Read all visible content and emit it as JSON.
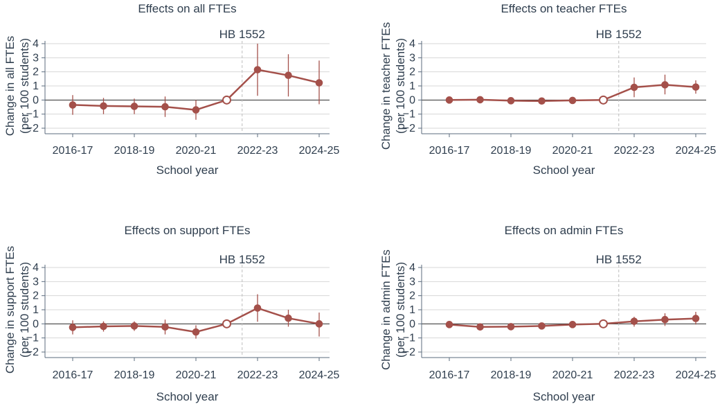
{
  "colors": {
    "series": "#a4504a",
    "grid": "#d7d7d7",
    "axis": "#5b6b7e",
    "zero": "#2b2b2b",
    "vline": "#bdbdbd",
    "text": "#2f3e4e"
  },
  "chart_data": [
    {
      "type": "line",
      "title": "Effects on all FTEs",
      "xlabel": "School year",
      "ylabel": [
        "Change in all FTEs",
        "(per 100 students)"
      ],
      "xlim": [
        2016,
        2024
      ],
      "ylim": [
        -2,
        4
      ],
      "yticks": [
        -2,
        -1,
        0,
        1,
        2,
        3,
        4
      ],
      "xticks": [
        {
          "x": 2016,
          "label": "2016-17"
        },
        {
          "x": 2018,
          "label": "2018-19"
        },
        {
          "x": 2020,
          "label": "2020-21"
        },
        {
          "x": 2022,
          "label": "2022-23"
        },
        {
          "x": 2024,
          "label": "2024-25"
        }
      ],
      "annotation": {
        "x": 2021.5,
        "label": "HB 1552"
      },
      "reference_x": 2021,
      "points": [
        {
          "x": 2016,
          "y": -0.35,
          "lo": -1.05,
          "hi": 0.35
        },
        {
          "x": 2017,
          "y": -0.42,
          "lo": -1.0,
          "hi": 0.15
        },
        {
          "x": 2018,
          "y": -0.45,
          "lo": -1.0,
          "hi": 0.1
        },
        {
          "x": 2019,
          "y": -0.48,
          "lo": -1.2,
          "hi": 0.25
        },
        {
          "x": 2020,
          "y": -0.7,
          "lo": -1.4,
          "hi": 0.0
        },
        {
          "x": 2021,
          "y": 0,
          "lo": 0,
          "hi": 0
        },
        {
          "x": 2022,
          "y": 2.15,
          "lo": 0.3,
          "hi": 4.0
        },
        {
          "x": 2023,
          "y": 1.75,
          "lo": 0.25,
          "hi": 3.25
        },
        {
          "x": 2024,
          "y": 1.22,
          "lo": -0.3,
          "hi": 2.8
        }
      ]
    },
    {
      "type": "line",
      "title": "Effects on teacher FTEs",
      "xlabel": "School year",
      "ylabel": [
        "Change in teacher FTEs",
        "(per 100 students)"
      ],
      "xlim": [
        2016,
        2024
      ],
      "ylim": [
        -2,
        4
      ],
      "yticks": [
        -2,
        -1,
        0,
        1,
        2,
        3,
        4
      ],
      "xticks": [
        {
          "x": 2016,
          "label": "2016-17"
        },
        {
          "x": 2018,
          "label": "2018-19"
        },
        {
          "x": 2020,
          "label": "2020-21"
        },
        {
          "x": 2022,
          "label": "2022-23"
        },
        {
          "x": 2024,
          "label": "2024-25"
        }
      ],
      "annotation": {
        "x": 2021.5,
        "label": "HB 1552"
      },
      "reference_x": 2021,
      "points": [
        {
          "x": 2016,
          "y": 0.0,
          "lo": -0.15,
          "hi": 0.15
        },
        {
          "x": 2017,
          "y": 0.02,
          "lo": -0.12,
          "hi": 0.15
        },
        {
          "x": 2018,
          "y": -0.05,
          "lo": -0.2,
          "hi": 0.1
        },
        {
          "x": 2019,
          "y": -0.07,
          "lo": -0.3,
          "hi": 0.15
        },
        {
          "x": 2020,
          "y": -0.03,
          "lo": -0.2,
          "hi": 0.12
        },
        {
          "x": 2021,
          "y": 0,
          "lo": 0,
          "hi": 0
        },
        {
          "x": 2022,
          "y": 0.9,
          "lo": 0.2,
          "hi": 1.6
        },
        {
          "x": 2023,
          "y": 1.08,
          "lo": 0.4,
          "hi": 1.8
        },
        {
          "x": 2024,
          "y": 0.92,
          "lo": 0.45,
          "hi": 1.4
        }
      ]
    },
    {
      "type": "line",
      "title": "Effects on support FTEs",
      "xlabel": "School year",
      "ylabel": [
        "Change in support FTEs",
        "(per 100 students)"
      ],
      "xlim": [
        2016,
        2024
      ],
      "ylim": [
        -2,
        4
      ],
      "yticks": [
        -2,
        -1,
        0,
        1,
        2,
        3,
        4
      ],
      "xticks": [
        {
          "x": 2016,
          "label": "2016-17"
        },
        {
          "x": 2018,
          "label": "2018-19"
        },
        {
          "x": 2020,
          "label": "2020-21"
        },
        {
          "x": 2022,
          "label": "2022-23"
        },
        {
          "x": 2024,
          "label": "2024-25"
        }
      ],
      "annotation": {
        "x": 2021.5,
        "label": "HB 1552"
      },
      "reference_x": 2021,
      "points": [
        {
          "x": 2016,
          "y": -0.25,
          "lo": -0.75,
          "hi": 0.25
        },
        {
          "x": 2017,
          "y": -0.18,
          "lo": -0.55,
          "hi": 0.18
        },
        {
          "x": 2018,
          "y": -0.15,
          "lo": -0.5,
          "hi": 0.18
        },
        {
          "x": 2019,
          "y": -0.22,
          "lo": -0.75,
          "hi": 0.3
        },
        {
          "x": 2020,
          "y": -0.58,
          "lo": -1.05,
          "hi": -0.1
        },
        {
          "x": 2021,
          "y": 0,
          "lo": 0,
          "hi": 0
        },
        {
          "x": 2022,
          "y": 1.12,
          "lo": 0.15,
          "hi": 2.1
        },
        {
          "x": 2023,
          "y": 0.4,
          "lo": -0.2,
          "hi": 1.0
        },
        {
          "x": 2024,
          "y": 0.0,
          "lo": -0.9,
          "hi": 0.8
        }
      ]
    },
    {
      "type": "line",
      "title": "Effects on admin FTEs",
      "xlabel": "School year",
      "ylabel": [
        "Change in admin FTEs",
        "(per 100 students)"
      ],
      "xlim": [
        2016,
        2024
      ],
      "ylim": [
        -2,
        4
      ],
      "yticks": [
        -2,
        -1,
        0,
        1,
        2,
        3,
        4
      ],
      "xticks": [
        {
          "x": 2016,
          "label": "2016-17"
        },
        {
          "x": 2018,
          "label": "2018-19"
        },
        {
          "x": 2020,
          "label": "2020-21"
        },
        {
          "x": 2022,
          "label": "2022-23"
        },
        {
          "x": 2024,
          "label": "2024-25"
        }
      ],
      "annotation": {
        "x": 2021.5,
        "label": "HB 1552"
      },
      "reference_x": 2021,
      "points": [
        {
          "x": 2016,
          "y": -0.05,
          "lo": -0.2,
          "hi": 0.1
        },
        {
          "x": 2017,
          "y": -0.22,
          "lo": -0.35,
          "hi": -0.08
        },
        {
          "x": 2018,
          "y": -0.2,
          "lo": -0.32,
          "hi": -0.05
        },
        {
          "x": 2019,
          "y": -0.15,
          "lo": -0.3,
          "hi": -0.02
        },
        {
          "x": 2020,
          "y": -0.05,
          "lo": -0.2,
          "hi": 0.08
        },
        {
          "x": 2021,
          "y": 0,
          "lo": 0,
          "hi": 0
        },
        {
          "x": 2022,
          "y": 0.18,
          "lo": -0.2,
          "hi": 0.5
        },
        {
          "x": 2023,
          "y": 0.3,
          "lo": -0.15,
          "hi": 0.75
        },
        {
          "x": 2024,
          "y": 0.38,
          "lo": -0.05,
          "hi": 0.85
        }
      ]
    }
  ]
}
